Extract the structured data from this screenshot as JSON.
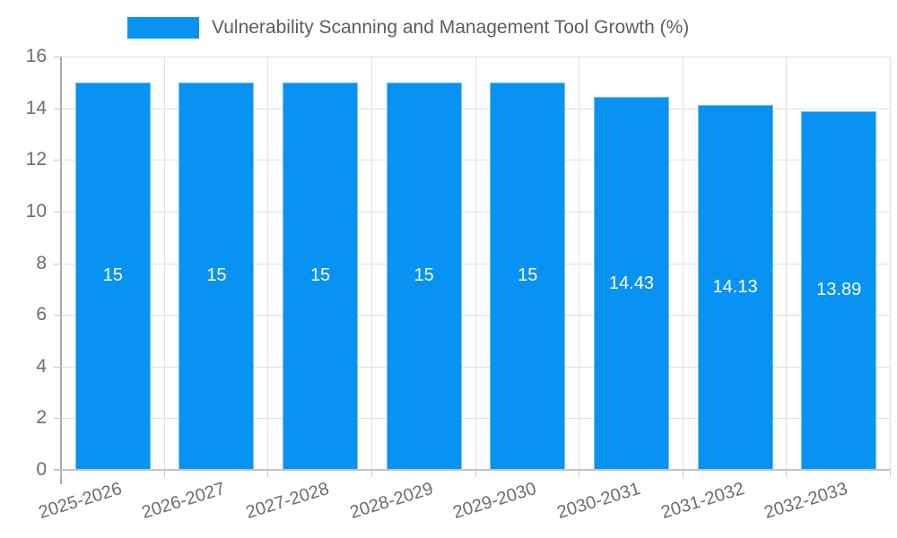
{
  "legend": {
    "label": "Vulnerability Scanning and Management Tool Growth (%)",
    "swatch_color": "#0892f2"
  },
  "chart_data": {
    "type": "bar",
    "title": "Vulnerability Scanning and Management Tool Growth (%)",
    "categories": [
      "2025-2026",
      "2026-2027",
      "2027-2028",
      "2028-2029",
      "2029-2030",
      "2030-2031",
      "2031-2032",
      "2032-2033"
    ],
    "values": [
      15,
      15,
      15,
      15,
      15,
      14.43,
      14.13,
      13.89
    ],
    "bar_labels": [
      "15",
      "15",
      "15",
      "15",
      "15",
      "14.43",
      "14.13",
      "13.89"
    ],
    "xlabel": "",
    "ylabel": "",
    "ylim": [
      0,
      16
    ],
    "yticks": [
      0,
      2,
      4,
      6,
      8,
      10,
      12,
      14,
      16
    ],
    "grid": true,
    "legend_position": "top",
    "bar_color": "#0892f2",
    "bar_label_color": "#ffffff",
    "axis_text_color": "#6d6d6d"
  }
}
